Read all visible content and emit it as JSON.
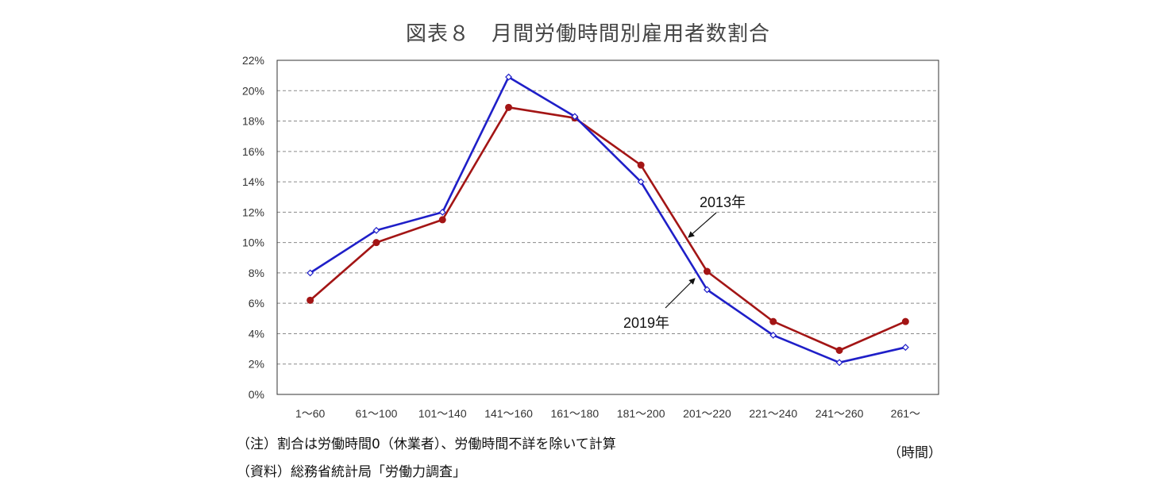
{
  "chart_data": {
    "type": "line",
    "title": "図表８　月間労働時間別雇用者数割合",
    "categories": [
      "1〜60",
      "61〜100",
      "101〜140",
      "141〜160",
      "161〜180",
      "181〜200",
      "201〜220",
      "221〜240",
      "241〜260",
      "261〜"
    ],
    "series": [
      {
        "name": "2013年",
        "color": "#A31515",
        "marker": "filled-circle",
        "values": [
          6.2,
          10.0,
          11.5,
          18.9,
          18.2,
          15.1,
          8.1,
          4.8,
          2.9,
          4.8
        ]
      },
      {
        "name": "2019年",
        "color": "#1F1FC8",
        "marker": "open-diamond",
        "values": [
          8.0,
          10.8,
          12.0,
          20.9,
          18.3,
          14.0,
          6.9,
          3.9,
          2.1,
          3.1
        ]
      }
    ],
    "ylim": [
      0,
      22
    ],
    "yticks": [
      0,
      2,
      4,
      6,
      8,
      10,
      12,
      14,
      16,
      18,
      20,
      22
    ],
    "ytick_suffix": "%",
    "grid": "horizontal-dashed",
    "xunit": "（時間）",
    "annotations": [
      {
        "label": "2013年",
        "series": "2013年"
      },
      {
        "label": "2019年",
        "series": "2019年"
      }
    ]
  },
  "notes": {
    "note1": "（注）割合は労働時間0（休業者）、労働時間不詳を除いて計算",
    "note2": "（資料）総務省統計局「労働力調査」"
  }
}
